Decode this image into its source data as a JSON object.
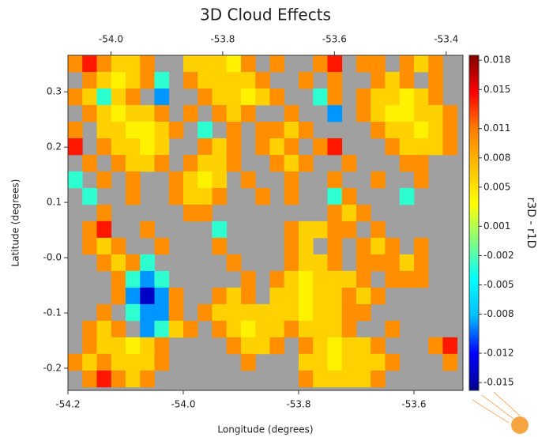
{
  "chart_data": {
    "type": "heatmap",
    "title": "3D Cloud Effects",
    "xlabel": "Longitude (degrees)",
    "ylabel": "Latitude (degrees)",
    "colorbar_label": "r3D - r1D",
    "xlim": [
      -54.2,
      -53.515
    ],
    "xticks": [
      -54.2,
      {
        "value": -54,
        "label": "-54.0"
      },
      -53.8,
      -53.6
    ],
    "x2lim": [
      -54.077,
      -53.37
    ],
    "x2ticks": [
      {
        "value": -54,
        "label": "-54.0"
      },
      -53.8,
      -53.6,
      -53.4
    ],
    "ylim": [
      -0.24,
      0.366
    ],
    "yticks": [
      0.3,
      0.2,
      0.1,
      {
        "value": 0,
        "label": "-0.0"
      },
      -0.1,
      -0.2
    ],
    "clim": [
      -0.0158,
      0.0185
    ],
    "cticks": [
      0.018,
      0.015,
      0.011,
      0.008,
      0.005,
      0.001,
      -0.002,
      -0.005,
      -0.008,
      -0.012,
      -0.015
    ],
    "colorscale": [
      "#00008f",
      "#0000ff",
      "#00bfff",
      "#00ffff",
      "#80ff80",
      "#ffff00",
      "#ffbf00",
      "#ff8000",
      "#ff0000",
      "#800000"
    ],
    "missing_color": "#a0a0a0",
    "x": [
      -54.1875,
      -54.1625,
      -54.1375,
      -54.1125,
      -54.0875,
      -54.0625,
      -54.0375,
      -54.0125,
      -53.9875,
      -53.9625,
      -53.9375,
      -53.9125,
      -53.8875,
      -53.8625,
      -53.8375,
      -53.8125,
      -53.7875,
      -53.7625,
      -53.7375,
      -53.7125,
      -53.6875,
      -53.6625,
      -53.6375,
      -53.6125,
      -53.5875,
      -53.5625,
      -53.5375
    ],
    "y": [
      0.351,
      0.321,
      0.291,
      0.261,
      0.231,
      0.201,
      0.171,
      0.141,
      0.111,
      0.081,
      0.051,
      0.021,
      -0.009,
      -0.039,
      -0.069,
      -0.099,
      -0.129,
      -0.159,
      -0.189,
      -0.219
    ],
    "z": [
      [
        0.01,
        0.014,
        0.01,
        0.006,
        0.006,
        0.01,
        null,
        null,
        0.006,
        0.006,
        0.006,
        0.004,
        0.01,
        null,
        0.01,
        null,
        null,
        0.01,
        0.014,
        null,
        0.01,
        0.01,
        null,
        0.01,
        0.006,
        0.01,
        null
      ],
      [
        null,
        0.01,
        0.006,
        0.004,
        0.006,
        0.01,
        -0.003,
        null,
        0.01,
        0.006,
        0.006,
        0.006,
        0.006,
        0.01,
        null,
        null,
        0.01,
        null,
        0.01,
        null,
        null,
        0.01,
        0.006,
        0.01,
        null,
        0.01,
        null
      ],
      [
        0.01,
        0.006,
        -0.003,
        0.006,
        0.01,
        null,
        -0.009,
        null,
        null,
        0.01,
        0.006,
        0.006,
        0.004,
        0.006,
        0.01,
        null,
        null,
        -0.003,
        0.01,
        null,
        0.01,
        0.006,
        0.006,
        0.004,
        0.006,
        0.01,
        null
      ],
      [
        null,
        0.01,
        0.006,
        0.004,
        0.006,
        0.006,
        0.01,
        null,
        0.01,
        null,
        0.01,
        0.006,
        0.01,
        null,
        null,
        0.01,
        null,
        null,
        -0.009,
        null,
        0.01,
        0.006,
        0.004,
        0.004,
        0.006,
        0.006,
        0.01
      ],
      [
        0.01,
        null,
        0.006,
        0.006,
        0.004,
        0.004,
        0.006,
        0.01,
        null,
        -0.003,
        null,
        0.01,
        null,
        0.01,
        0.01,
        0.006,
        0.01,
        null,
        null,
        null,
        null,
        0.01,
        0.006,
        0.006,
        0.004,
        0.006,
        0.01
      ],
      [
        0.014,
        null,
        0.01,
        0.006,
        0.006,
        0.004,
        0.006,
        null,
        null,
        0.01,
        0.006,
        0.01,
        null,
        0.01,
        0.006,
        0.01,
        null,
        0.01,
        0.014,
        null,
        null,
        null,
        0.01,
        0.006,
        0.006,
        0.006,
        0.01
      ],
      [
        null,
        0.01,
        null,
        0.01,
        0.006,
        0.006,
        0.01,
        null,
        0.01,
        0.006,
        0.006,
        0.01,
        null,
        null,
        0.01,
        0.006,
        0.01,
        null,
        null,
        0.01,
        null,
        null,
        null,
        0.01,
        0.01,
        null,
        null
      ],
      [
        -0.003,
        null,
        0.01,
        null,
        0.01,
        null,
        null,
        0.01,
        0.006,
        0.004,
        0.006,
        null,
        0.01,
        null,
        null,
        0.01,
        null,
        null,
        0.01,
        null,
        null,
        0.01,
        null,
        null,
        0.01,
        null,
        null
      ],
      [
        null,
        -0.003,
        null,
        null,
        0.01,
        null,
        null,
        0.01,
        0.006,
        0.006,
        0.01,
        null,
        null,
        0.01,
        null,
        0.01,
        null,
        null,
        -0.003,
        0.01,
        null,
        null,
        null,
        -0.003,
        null,
        null,
        null
      ],
      [
        null,
        null,
        0.01,
        null,
        null,
        null,
        null,
        null,
        0.01,
        0.01,
        null,
        null,
        null,
        null,
        null,
        null,
        null,
        null,
        0.01,
        0.006,
        0.01,
        null,
        null,
        null,
        null,
        null,
        null
      ],
      [
        null,
        0.01,
        0.014,
        null,
        null,
        0.01,
        null,
        null,
        null,
        null,
        -0.003,
        null,
        null,
        null,
        null,
        0.01,
        0.006,
        0.006,
        0.01,
        0.01,
        null,
        0.01,
        null,
        null,
        null,
        null,
        null
      ],
      [
        null,
        0.01,
        0.006,
        0.01,
        null,
        null,
        0.01,
        null,
        null,
        null,
        0.01,
        null,
        null,
        null,
        null,
        0.01,
        0.006,
        null,
        0.01,
        null,
        0.01,
        0.006,
        0.01,
        null,
        0.01,
        null,
        null
      ],
      [
        null,
        null,
        0.01,
        0.006,
        0.01,
        -0.003,
        null,
        null,
        null,
        null,
        null,
        0.01,
        null,
        null,
        null,
        0.01,
        0.006,
        0.006,
        0.01,
        null,
        0.01,
        0.01,
        0.01,
        0.006,
        0.01,
        null,
        null
      ],
      [
        null,
        null,
        null,
        0.01,
        -0.003,
        -0.009,
        -0.003,
        null,
        null,
        null,
        null,
        null,
        0.01,
        null,
        0.01,
        0.006,
        0.004,
        0.006,
        0.006,
        0.006,
        0.01,
        null,
        0.01,
        0.01,
        0.01,
        null,
        null
      ],
      [
        null,
        null,
        null,
        0.01,
        -0.009,
        -0.014,
        -0.009,
        0.01,
        null,
        null,
        0.01,
        0.006,
        0.01,
        null,
        0.006,
        0.006,
        0.004,
        0.006,
        0.006,
        0.01,
        0.006,
        0.01,
        null,
        null,
        null,
        null,
        null
      ],
      [
        null,
        null,
        0.01,
        null,
        -0.003,
        -0.009,
        -0.009,
        0.01,
        null,
        0.01,
        0.006,
        0.006,
        0.006,
        0.006,
        0.006,
        0.006,
        0.004,
        0.006,
        0.006,
        0.01,
        0.01,
        null,
        null,
        null,
        null,
        null,
        null
      ],
      [
        null,
        0.01,
        0.006,
        0.01,
        null,
        -0.009,
        -0.003,
        0.006,
        0.01,
        null,
        0.01,
        0.006,
        0.004,
        0.006,
        0.006,
        0.01,
        0.006,
        0.006,
        0.006,
        0.01,
        null,
        null,
        0.01,
        null,
        null,
        null,
        null
      ],
      [
        null,
        0.01,
        0.006,
        0.006,
        0.004,
        0.006,
        0.01,
        null,
        null,
        null,
        null,
        0.01,
        0.006,
        0.006,
        0.01,
        null,
        0.01,
        0.006,
        0.004,
        0.006,
        0.006,
        0.01,
        null,
        null,
        null,
        0.01,
        0.014
      ],
      [
        0.01,
        0.006,
        0.01,
        0.006,
        0.006,
        0.006,
        0.01,
        null,
        null,
        null,
        null,
        null,
        0.01,
        null,
        null,
        null,
        0.006,
        0.006,
        0.004,
        0.006,
        0.006,
        0.006,
        0.01,
        null,
        null,
        null,
        0.01
      ],
      [
        null,
        0.01,
        0.014,
        0.01,
        0.006,
        0.01,
        null,
        null,
        null,
        null,
        null,
        null,
        null,
        null,
        null,
        null,
        0.01,
        0.006,
        0.006,
        0.006,
        0.006,
        0.01,
        null,
        null,
        null,
        null,
        null
      ]
    ]
  }
}
